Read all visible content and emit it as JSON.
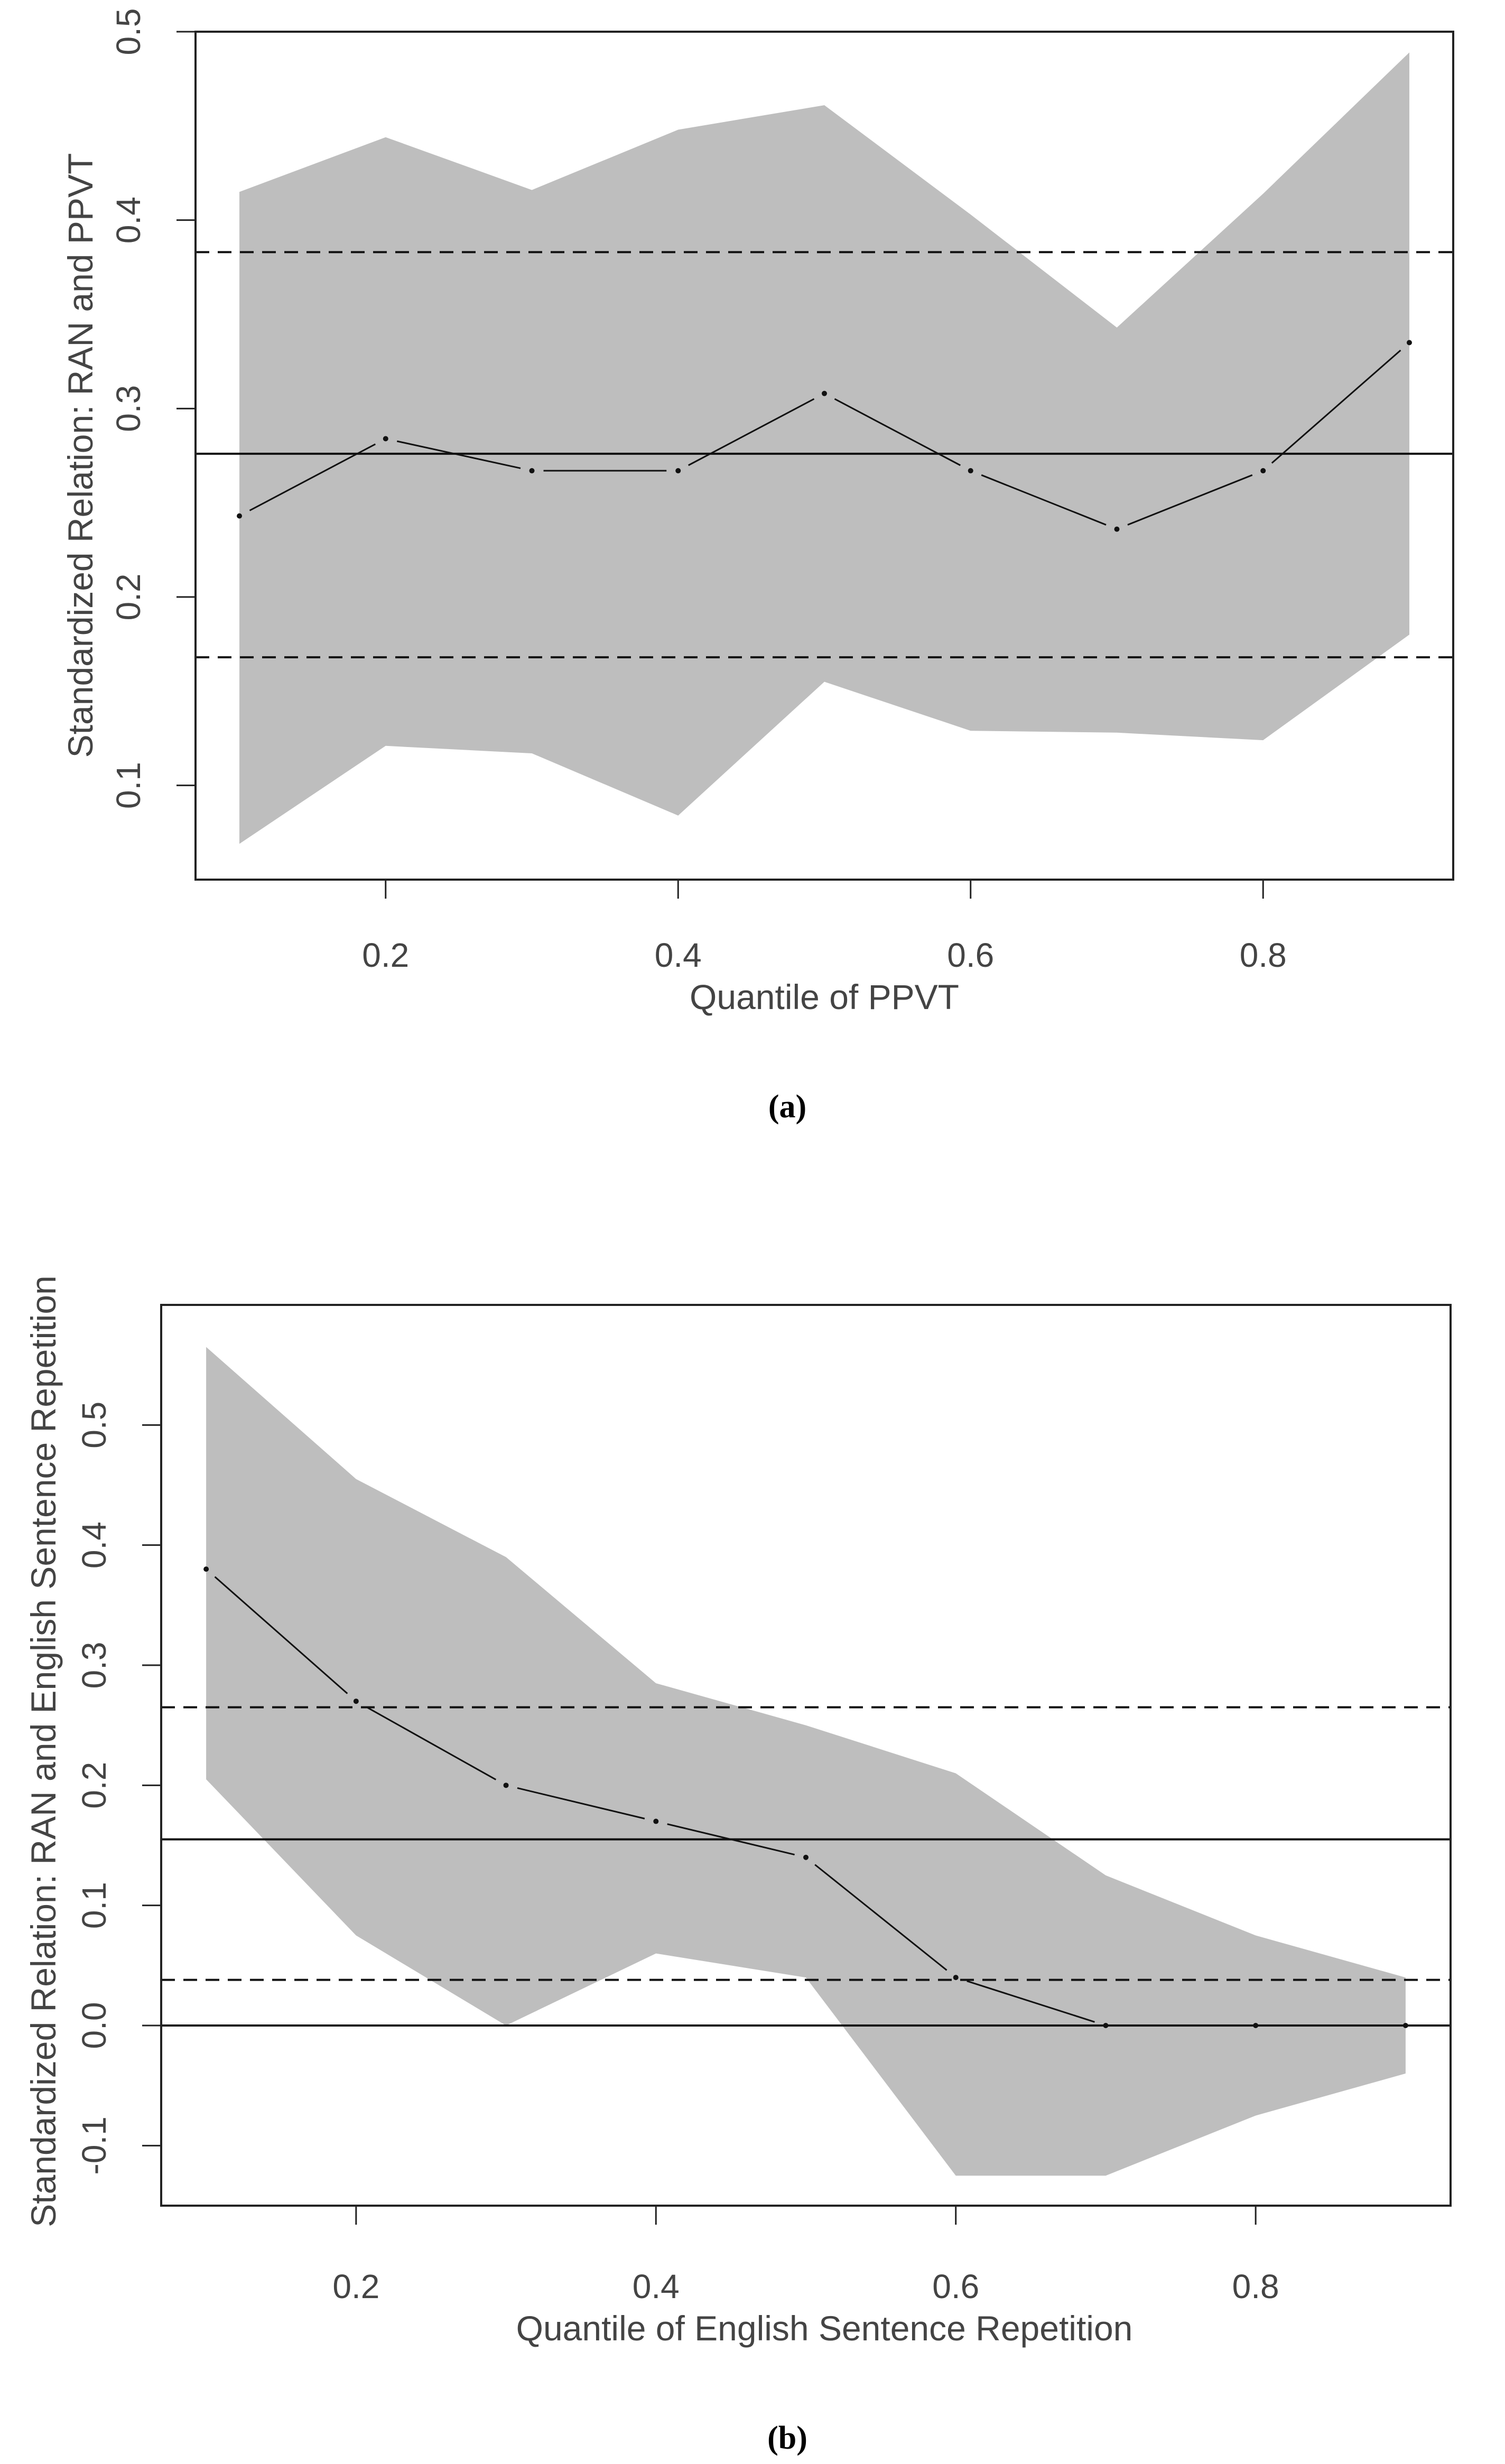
{
  "colors": {
    "band": "#bebebe",
    "frame": "#222222",
    "line": "#111111",
    "text": "#444444"
  },
  "chart_data": [
    {
      "type": "line",
      "caption": "(a)",
      "xlabel": "Quantile of PPVT",
      "ylabel": "Standardized Relation: RAN and PPVT",
      "xlim": [
        0.07,
        0.93
      ],
      "ylim": [
        0.05,
        0.5
      ],
      "xticks": [
        "0.2",
        "0.4",
        "0.6",
        "0.8"
      ],
      "yticks": [
        "0.1",
        "0.2",
        "0.3",
        "0.4",
        "0.5"
      ],
      "x": [
        0.1,
        0.2,
        0.3,
        0.4,
        0.5,
        0.6,
        0.7,
        0.8,
        0.9
      ],
      "estimate": [
        0.243,
        0.284,
        0.267,
        0.267,
        0.308,
        0.267,
        0.236,
        0.267,
        0.335
      ],
      "ci_upper": [
        0.415,
        0.444,
        0.416,
        0.448,
        0.461,
        0.403,
        0.343,
        0.414,
        0.489
      ],
      "ci_lower": [
        0.069,
        0.121,
        0.117,
        0.084,
        0.155,
        0.129,
        0.128,
        0.124,
        0.18
      ],
      "ols_estimate": 0.276,
      "ols_ci": [
        0.168,
        0.383
      ],
      "zero_line": false,
      "grid": false
    },
    {
      "type": "line",
      "caption": "(b)",
      "xlabel": "Quantile of English Sentence Repetition",
      "ylabel": "Standardized Relation: RAN and English Sentence Repetition",
      "xlim": [
        0.07,
        0.93
      ],
      "ylim": [
        -0.15,
        0.6
      ],
      "xticks": [
        "0.2",
        "0.4",
        "0.6",
        "0.8"
      ],
      "yticks": [
        "-0.1",
        "0.0",
        "0.1",
        "0.2",
        "0.3",
        "0.4",
        "0.5"
      ],
      "x": [
        0.1,
        0.2,
        0.3,
        0.4,
        0.5,
        0.6,
        0.7,
        0.8,
        0.9
      ],
      "estimate": [
        0.38,
        0.27,
        0.2,
        0.17,
        0.14,
        0.04,
        0.0,
        0.0,
        0.0
      ],
      "ci_upper": [
        0.565,
        0.455,
        0.39,
        0.285,
        0.25,
        0.21,
        0.125,
        0.075,
        0.04
      ],
      "ci_lower": [
        0.205,
        0.075,
        0.0,
        0.06,
        0.04,
        -0.125,
        -0.125,
        -0.075,
        -0.04
      ],
      "ols_estimate": 0.155,
      "ols_ci": [
        0.038,
        0.265
      ],
      "zero_line": true,
      "grid": false
    }
  ]
}
